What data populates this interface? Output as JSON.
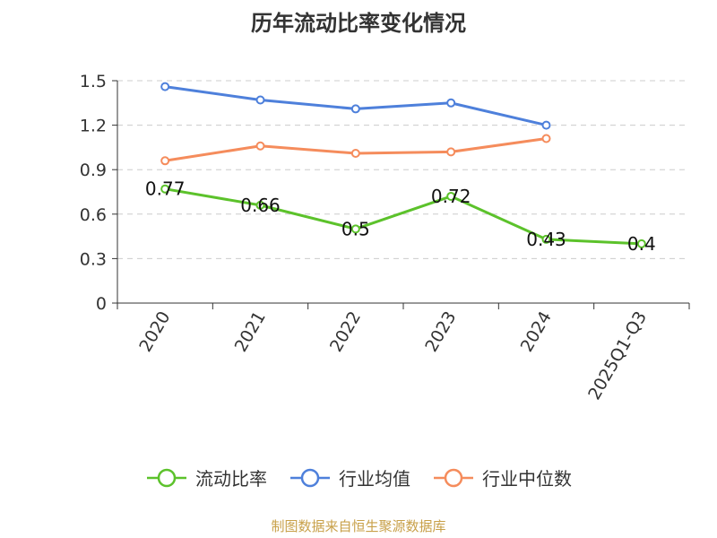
{
  "chart_data": {
    "type": "line",
    "title": "历年流动比率变化情况",
    "categories": [
      "2020",
      "2021",
      "2022",
      "2023",
      "2024",
      "2025Q1-Q3"
    ],
    "ylim": [
      0,
      1.5
    ],
    "yticks": [
      0,
      0.3,
      0.6,
      0.9,
      1.2,
      1.5
    ],
    "ytick_labels": [
      "0",
      "0.3",
      "0.6",
      "0.9",
      "1.2",
      "1.5"
    ],
    "grid": true,
    "legend_position": "bottom",
    "series": [
      {
        "name": "流动比率",
        "color": "#5cc22b",
        "values": [
          0.77,
          0.66,
          0.5,
          0.72,
          0.43,
          0.4
        ],
        "labels": [
          "0.77",
          "0.66",
          "0.5",
          "0.72",
          "0.43",
          "0.4"
        ]
      },
      {
        "name": "行业均值",
        "color": "#4e80db",
        "values": [
          1.46,
          1.37,
          1.31,
          1.35,
          1.2,
          null
        ]
      },
      {
        "name": "行业中位数",
        "color": "#f58c5c",
        "values": [
          0.96,
          1.06,
          1.01,
          1.02,
          1.11,
          null
        ]
      }
    ]
  },
  "footer": {
    "source": "制图数据来自恒生聚源数据库"
  }
}
